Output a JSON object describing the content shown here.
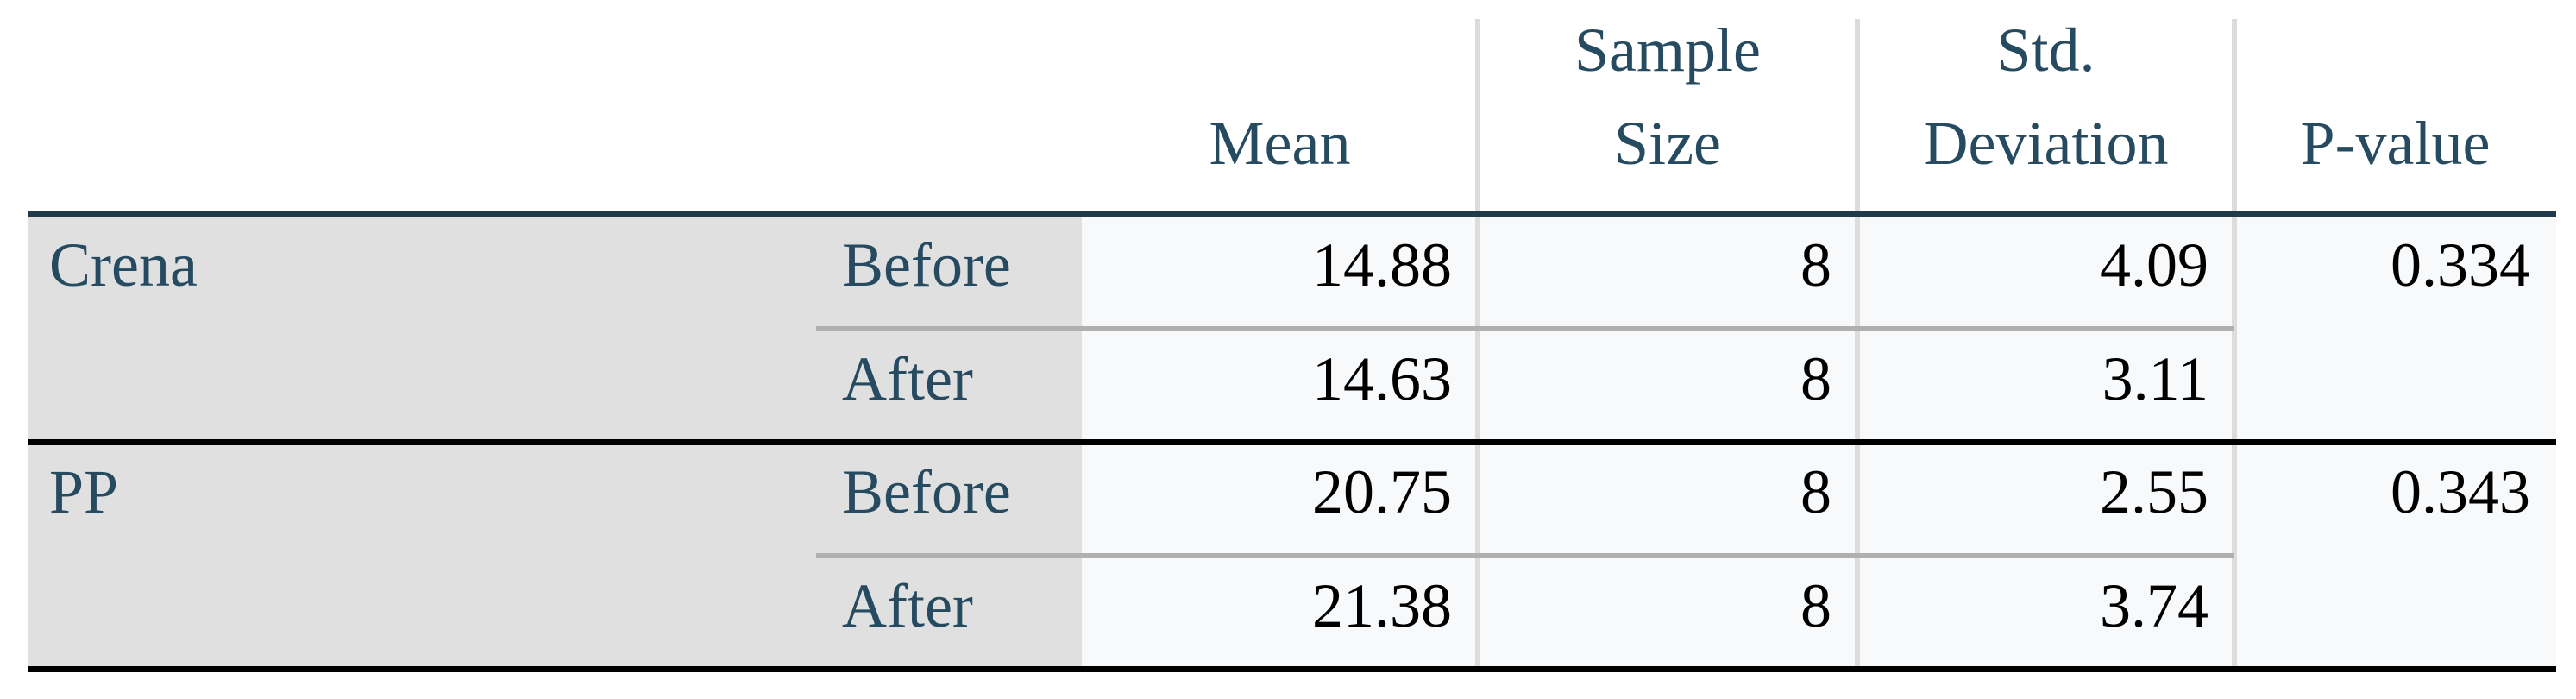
{
  "table": {
    "columns": [
      [
        "Mean"
      ],
      [
        "Sample",
        "Size"
      ],
      [
        "Std.",
        "Deviation"
      ],
      [
        "P-value"
      ]
    ],
    "groups": [
      {
        "name": "Crena",
        "p_value": "0.334",
        "rows": [
          {
            "label": "Before",
            "mean": "14.88",
            "n": "8",
            "sd": "4.09"
          },
          {
            "label": "After",
            "mean": "14.63",
            "n": "8",
            "sd": "3.11"
          }
        ]
      },
      {
        "name": "PP",
        "p_value": "0.343",
        "rows": [
          {
            "label": "Before",
            "mean": "20.75",
            "n": "8",
            "sd": "2.55"
          },
          {
            "label": "After",
            "mean": "21.38",
            "n": "8",
            "sd": "3.74"
          }
        ]
      }
    ]
  }
}
